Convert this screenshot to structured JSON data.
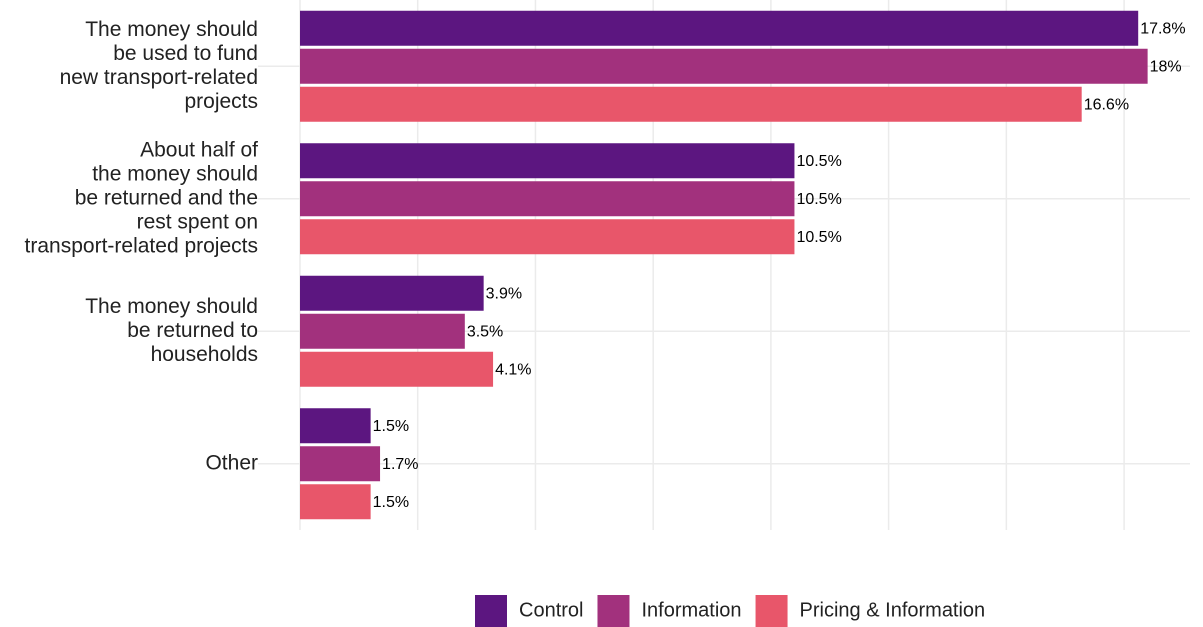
{
  "chart_data": {
    "type": "hbar",
    "categories": [
      [
        "The money should",
        "be used to fund",
        "new transport-related",
        "projects"
      ],
      [
        "About half of",
        "the money should",
        "be returned and the",
        "rest spent on",
        "transport-related projects"
      ],
      [
        "The money should",
        "be returned to",
        "households"
      ],
      [
        "Other"
      ]
    ],
    "series": [
      {
        "name": "Control",
        "color": "#5c1680",
        "values": [
          17.8,
          10.5,
          3.9,
          1.5
        ],
        "value_labels": [
          "17.8%",
          "10.5%",
          "3.9%",
          "1.5%"
        ]
      },
      {
        "name": "Information",
        "color": "#a2317d",
        "values": [
          18,
          10.5,
          3.5,
          1.7
        ],
        "value_labels": [
          "18%",
          "10.5%",
          "3.5%",
          "1.7%"
        ]
      },
      {
        "name": "Pricing & Information",
        "color": "#e8566a",
        "values": [
          16.6,
          10.5,
          4.1,
          1.5
        ],
        "value_labels": [
          "16.6%",
          "10.5%",
          "4.1%",
          "1.5%"
        ]
      }
    ],
    "xlim": [
      0,
      18.9
    ],
    "xticks": [
      0,
      2.5,
      5,
      7.5,
      10,
      12.5,
      15,
      17.5
    ],
    "grid": true,
    "legend": "bottom"
  }
}
